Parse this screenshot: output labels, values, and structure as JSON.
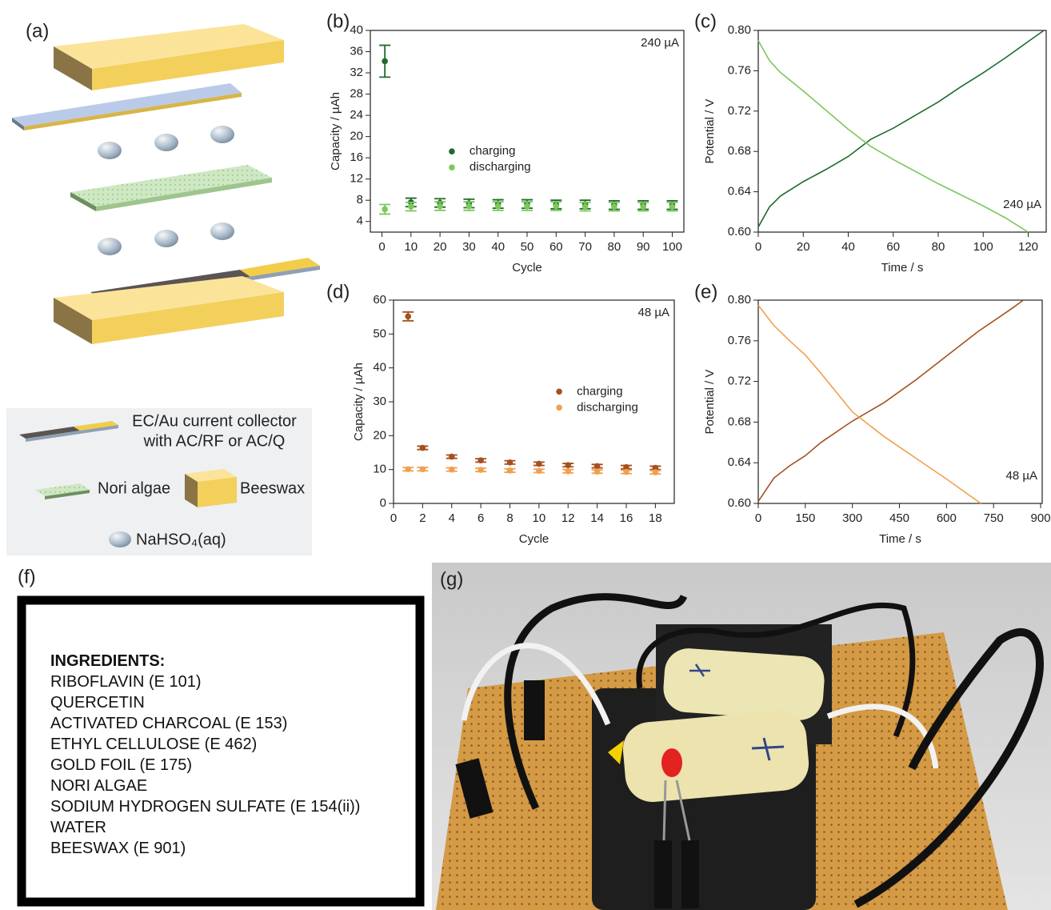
{
  "panel_labels": [
    "(a)",
    "(b)",
    "(c)",
    "(d)",
    "(e)",
    "(f)",
    "(g)"
  ],
  "schematic_legend": {
    "current_collector": [
      "EC/Au current collector",
      "with AC/RF or AC/Q"
    ],
    "separator": "Nori algae",
    "encapsulant": "Beeswax",
    "electrolyte": "NaHSO₄(aq)"
  },
  "ingredients": {
    "heading": "INGREDIENTS:",
    "items": [
      "RIBOFLAVIN (E 101)",
      "QUERCETIN",
      "ACTIVATED CHARCOAL (E 153)",
      "ETHYL CELLULOSE (E 462)",
      "GOLD FOIL (E 175)",
      "NORI ALGAE",
      "SODIUM HYDROGEN SULFATE (E 154(ii))",
      "WATER",
      "BEESWAX (E 901)"
    ]
  },
  "chart_data": [
    {
      "type": "scatter",
      "x": [
        1,
        10,
        20,
        30,
        40,
        50,
        60,
        70,
        80,
        90,
        100
      ],
      "xlim": [
        -4,
        104
      ],
      "xticks": [
        0,
        10,
        20,
        30,
        40,
        50,
        60,
        70,
        80,
        90,
        100
      ],
      "ylim": [
        2,
        40
      ],
      "yticks": [
        4,
        8,
        12,
        16,
        20,
        24,
        28,
        32,
        36,
        40
      ],
      "x_label": "Cycle",
      "y_label": "Capacity / µAh",
      "annotation": "240 µA",
      "annotation_corner": "top-right",
      "legend": "center-left",
      "series": [
        {
          "name": "charging",
          "color": "#1f6b2c",
          "values": [
            34.2,
            7.6,
            7.5,
            7.4,
            7.3,
            7.3,
            7.2,
            7.2,
            7.1,
            7.1,
            7.1
          ],
          "errors": [
            3.0,
            0.8,
            0.8,
            0.8,
            0.8,
            0.8,
            0.8,
            0.8,
            0.8,
            0.8,
            0.8
          ]
        },
        {
          "name": "discharging",
          "color": "#7cc85a",
          "values": [
            6.3,
            6.8,
            6.9,
            6.9,
            6.9,
            6.9,
            6.9,
            6.8,
            6.8,
            6.8,
            6.8
          ],
          "errors": [
            0.9,
            0.8,
            0.8,
            0.8,
            0.8,
            0.8,
            0.8,
            0.8,
            0.8,
            0.8,
            0.8
          ]
        }
      ]
    },
    {
      "type": "line",
      "xlim": [
        0,
        128
      ],
      "xticks": [
        0,
        20,
        40,
        60,
        80,
        100,
        120
      ],
      "ylim": [
        0.6,
        0.8
      ],
      "yticks": [
        {
          "value": 0.6,
          "label": "0.60"
        },
        0.64,
        0.68,
        0.72,
        0.76,
        {
          "value": 0.8,
          "label": "0.80"
        }
      ],
      "x_label": "Time / s",
      "y_label": "Potential / V",
      "annotation": "240 µA",
      "annotation_corner": "bottom-right",
      "series": [
        {
          "color": "#1f6b2c",
          "x": [
            0,
            5,
            10,
            20,
            30,
            40,
            50,
            60,
            70,
            80,
            90,
            100,
            110,
            120,
            127
          ],
          "values": [
            0.605,
            0.625,
            0.636,
            0.65,
            0.662,
            0.675,
            0.692,
            0.703,
            0.716,
            0.729,
            0.744,
            0.758,
            0.773,
            0.789,
            0.8
          ]
        },
        {
          "color": "#7cc85a",
          "x": [
            0,
            5,
            10,
            20,
            30,
            40,
            50,
            60,
            70,
            80,
            90,
            100,
            110,
            120
          ],
          "values": [
            0.79,
            0.77,
            0.758,
            0.74,
            0.721,
            0.702,
            0.685,
            0.672,
            0.66,
            0.648,
            0.637,
            0.626,
            0.614,
            0.6
          ]
        }
      ]
    },
    {
      "type": "scatter",
      "x": [
        1,
        2,
        4,
        6,
        8,
        10,
        12,
        14,
        16,
        18
      ],
      "xlim": [
        0,
        19.3
      ],
      "xticks": [
        0,
        2,
        4,
        6,
        8,
        10,
        12,
        14,
        16,
        18
      ],
      "ylim": [
        0,
        60
      ],
      "yticks": [
        0,
        10,
        20,
        30,
        40,
        50,
        60
      ],
      "x_label": "Cycle",
      "y_label": "Capacity / µAh",
      "annotation": "48 µA",
      "annotation_corner": "top-right",
      "legend": "center-right",
      "series": [
        {
          "name": "charging",
          "color": "#a5501e",
          "values": [
            55.2,
            16.4,
            13.8,
            12.7,
            12.1,
            11.7,
            11.3,
            11.0,
            10.7,
            10.5
          ],
          "errors": [
            1.3,
            0.5,
            0.5,
            0.5,
            0.5,
            0.5,
            0.5,
            0.5,
            0.5,
            0.5
          ]
        },
        {
          "name": "discharging",
          "color": "#f0a050",
          "values": [
            10.1,
            10.1,
            10.0,
            9.9,
            9.7,
            9.6,
            9.5,
            9.4,
            9.3,
            9.2
          ],
          "errors": [
            0.5,
            0.5,
            0.5,
            0.5,
            0.5,
            0.5,
            0.5,
            0.5,
            0.5,
            0.5
          ]
        }
      ]
    },
    {
      "type": "line",
      "xlim": [
        0,
        905
      ],
      "xticks": [
        0,
        150,
        300,
        450,
        600,
        750,
        900
      ],
      "ylim": [
        0.6,
        0.8
      ],
      "yticks": [
        {
          "value": 0.6,
          "label": "0.60"
        },
        0.64,
        0.68,
        0.72,
        0.76,
        {
          "value": 0.8,
          "label": "0.80"
        }
      ],
      "x_label": "Time / s",
      "y_label": "Potential / V",
      "annotation": "48 µA",
      "annotation_corner": "bottom-right",
      "series": [
        {
          "color": "#a5501e",
          "x": [
            0,
            50,
            100,
            150,
            200,
            300,
            400,
            500,
            600,
            700,
            800,
            845
          ],
          "values": [
            0.602,
            0.625,
            0.637,
            0.647,
            0.66,
            0.681,
            0.699,
            0.721,
            0.745,
            0.769,
            0.79,
            0.8
          ]
        },
        {
          "color": "#f0a050",
          "x": [
            0,
            50,
            100,
            150,
            200,
            300,
            400,
            500,
            600,
            700,
            710
          ],
          "values": [
            0.795,
            0.775,
            0.76,
            0.746,
            0.728,
            0.69,
            0.666,
            0.645,
            0.624,
            0.602,
            0.6
          ]
        }
      ]
    }
  ]
}
